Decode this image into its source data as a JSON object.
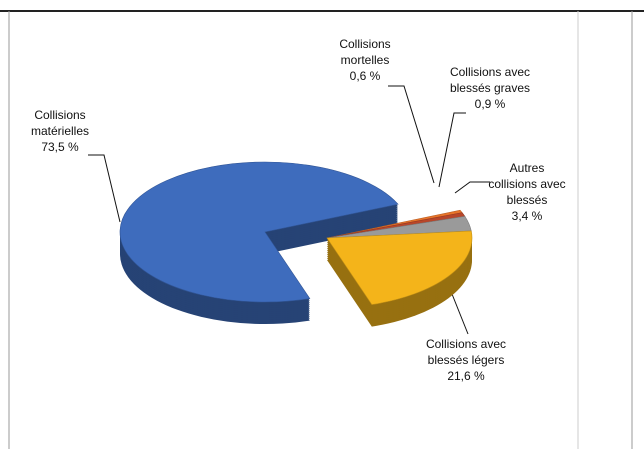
{
  "chart_data": {
    "type": "pie",
    "categories": [
      "Collisions matérielles",
      "Collisions mortelles",
      "Collisions avec blessés graves",
      "Autres collisions avec blessés",
      "Collisions avec blessés légers"
    ],
    "values": [
      73.5,
      0.6,
      0.9,
      3.4,
      21.6
    ],
    "value_labels": [
      "73,5 %",
      "0,6 %",
      "0,9 %",
      "3,4 %",
      "21,6 %"
    ],
    "colors": [
      "#3e6cbd",
      "#e8742a",
      "#b8462a",
      "#9a9a9a",
      "#f4b41a"
    ]
  }
}
